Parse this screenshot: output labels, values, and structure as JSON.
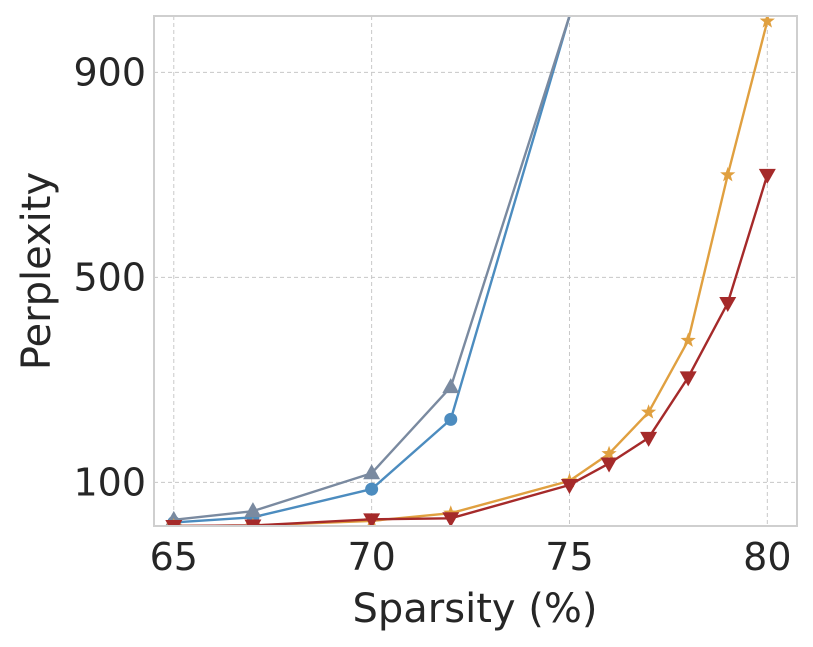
{
  "chart_data": {
    "type": "line",
    "xlabel": "Sparsity (%)",
    "ylabel": "Perplexity",
    "xlim": [
      64.5,
      80.75
    ],
    "ylim": [
      15,
      1010
    ],
    "xticks": [
      65,
      70,
      75,
      80
    ],
    "yticks": [
      100,
      500,
      900
    ],
    "grid": true,
    "legend": "none",
    "series": [
      {
        "color": "#4c8cbf",
        "marker": "circle",
        "x": [
          65,
          67,
          70,
          72,
          75
        ],
        "y": [
          22,
          32,
          87,
          223,
          1010
        ]
      },
      {
        "color": "#7a8aa0",
        "marker": "triangle-up",
        "x": [
          65,
          67,
          70,
          72,
          75
        ],
        "y": [
          27,
          44,
          118,
          286,
          1010
        ]
      },
      {
        "color": "#e0a040",
        "marker": "star",
        "x": [
          65,
          67,
          70,
          72,
          75,
          76,
          77,
          78,
          79,
          80
        ],
        "y": [
          15,
          16,
          25,
          40,
          103,
          156,
          237,
          377,
          700,
          1000
        ]
      },
      {
        "color": "#a52a2a",
        "marker": "triangle-down",
        "x": [
          65,
          67,
          70,
          72,
          75,
          76,
          77,
          78,
          79,
          80
        ],
        "y": [
          15,
          16,
          28,
          30,
          95,
          137,
          187,
          305,
          450,
          700
        ]
      }
    ]
  }
}
